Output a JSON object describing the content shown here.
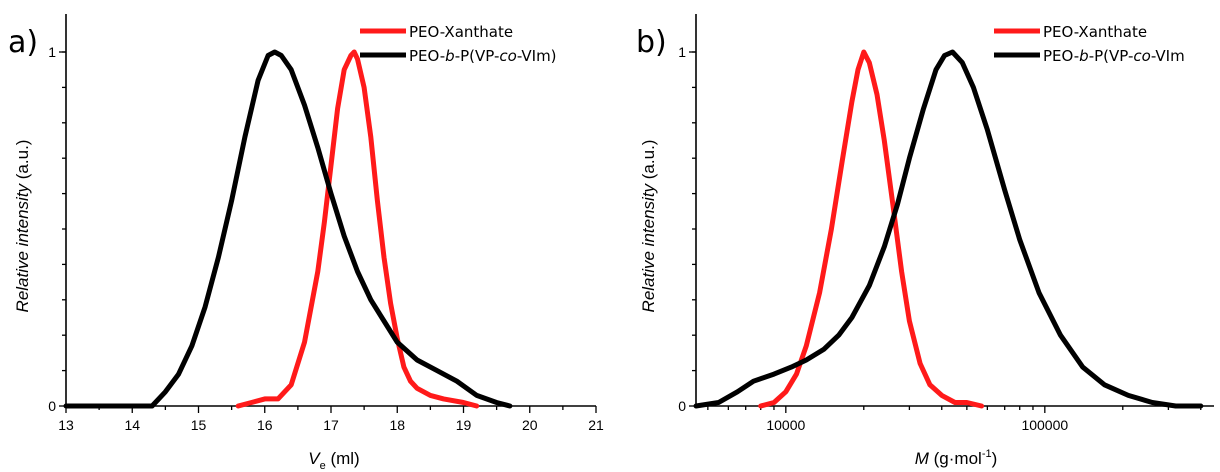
{
  "colors": {
    "PEO-Xanthate": "#ff1a1a",
    "PEO-b-P(VP-co-VIm)": "#000000"
  },
  "chart_data": [
    {
      "type": "line",
      "panel_label": "a)",
      "xlabel_main": "V",
      "xlabel_sub": "e",
      "xlabel_unit": " (ml)",
      "ylabel_italic": "Relative intensity",
      "ylabel_unit": " (a.u.)",
      "xscale": "linear",
      "xlim": [
        13,
        21
      ],
      "ylim": [
        0,
        1
      ],
      "xticks": [
        13,
        14,
        15,
        16,
        17,
        18,
        19,
        20,
        21
      ],
      "xtick_labels": [
        "13",
        "14",
        "15",
        "16",
        "17",
        "18",
        "19",
        "20",
        "21"
      ],
      "yticks": [
        0,
        1
      ],
      "ytick_labels": [
        "0",
        "1"
      ],
      "legend_position": "top-right",
      "series": [
        {
          "name": "PEO-Xanthate",
          "color": "#ff1a1a",
          "x": [
            15.6,
            15.8,
            16.0,
            16.2,
            16.4,
            16.6,
            16.8,
            16.9,
            17.0,
            17.1,
            17.2,
            17.3,
            17.35,
            17.4,
            17.5,
            17.6,
            17.7,
            17.8,
            17.9,
            18.0,
            18.1,
            18.2,
            18.3,
            18.5,
            18.7,
            19.0,
            19.2
          ],
          "y": [
            0.0,
            0.01,
            0.02,
            0.02,
            0.06,
            0.18,
            0.38,
            0.52,
            0.68,
            0.84,
            0.95,
            0.99,
            1.0,
            0.98,
            0.9,
            0.76,
            0.58,
            0.42,
            0.29,
            0.19,
            0.11,
            0.07,
            0.05,
            0.03,
            0.02,
            0.01,
            0.0
          ]
        },
        {
          "name": "PEO-b-P(VP-co-VIm)",
          "color": "#000000",
          "x": [
            13.0,
            13.5,
            14.0,
            14.3,
            14.5,
            14.7,
            14.9,
            15.1,
            15.3,
            15.5,
            15.7,
            15.9,
            16.05,
            16.15,
            16.25,
            16.4,
            16.6,
            16.8,
            17.0,
            17.2,
            17.4,
            17.6,
            17.8,
            18.0,
            18.3,
            18.6,
            18.9,
            19.2,
            19.5,
            19.7
          ],
          "y": [
            0.0,
            0.0,
            0.0,
            0.0,
            0.04,
            0.09,
            0.17,
            0.28,
            0.42,
            0.58,
            0.76,
            0.92,
            0.99,
            1.0,
            0.99,
            0.95,
            0.85,
            0.73,
            0.6,
            0.48,
            0.38,
            0.3,
            0.24,
            0.18,
            0.13,
            0.1,
            0.07,
            0.03,
            0.01,
            0.0
          ]
        }
      ]
    },
    {
      "type": "line",
      "panel_label": "b)",
      "xlabel_main": "M",
      "xlabel_unit": " (g·mol",
      "xlabel_sup": "-1",
      "xlabel_close": ")",
      "ylabel_italic": "Relative intensity",
      "ylabel_unit": " (a.u.)",
      "xscale": "log",
      "xlim": [
        4500,
        450000
      ],
      "ylim": [
        0,
        1
      ],
      "xticks": [
        10000,
        100000
      ],
      "xtick_labels": [
        "10000",
        "100000"
      ],
      "yticks": [
        0,
        1
      ],
      "ytick_labels": [
        "0",
        "1"
      ],
      "legend_position": "top-right",
      "series": [
        {
          "name": "PEO-Xanthate",
          "color": "#ff1a1a",
          "x": [
            8000,
            9000,
            10000,
            11000,
            12000,
            13500,
            15000,
            16500,
            18000,
            19000,
            20000,
            21000,
            22500,
            24000,
            26000,
            28000,
            30000,
            33000,
            36000,
            40000,
            45000,
            50000,
            57000
          ],
          "y": [
            0.0,
            0.01,
            0.04,
            0.09,
            0.17,
            0.32,
            0.5,
            0.69,
            0.86,
            0.95,
            1.0,
            0.97,
            0.88,
            0.75,
            0.56,
            0.38,
            0.24,
            0.12,
            0.06,
            0.03,
            0.01,
            0.01,
            0.0
          ]
        },
        {
          "name": "PEO-b-P(VP-co-VIm)",
          "color": "#000000",
          "x": [
            4500,
            5500,
            6500,
            7500,
            9000,
            10500,
            12000,
            14000,
            16000,
            18000,
            21000,
            24000,
            27000,
            30000,
            34000,
            38000,
            41000,
            44000,
            48000,
            53000,
            60000,
            70000,
            80000,
            95000,
            115000,
            140000,
            170000,
            210000,
            260000,
            320000,
            400000
          ],
          "y": [
            0.0,
            0.01,
            0.04,
            0.07,
            0.09,
            0.11,
            0.13,
            0.16,
            0.2,
            0.25,
            0.34,
            0.45,
            0.57,
            0.7,
            0.84,
            0.95,
            0.99,
            1.0,
            0.97,
            0.9,
            0.78,
            0.61,
            0.47,
            0.32,
            0.2,
            0.11,
            0.06,
            0.03,
            0.01,
            0.0,
            0.0
          ]
        }
      ]
    }
  ]
}
